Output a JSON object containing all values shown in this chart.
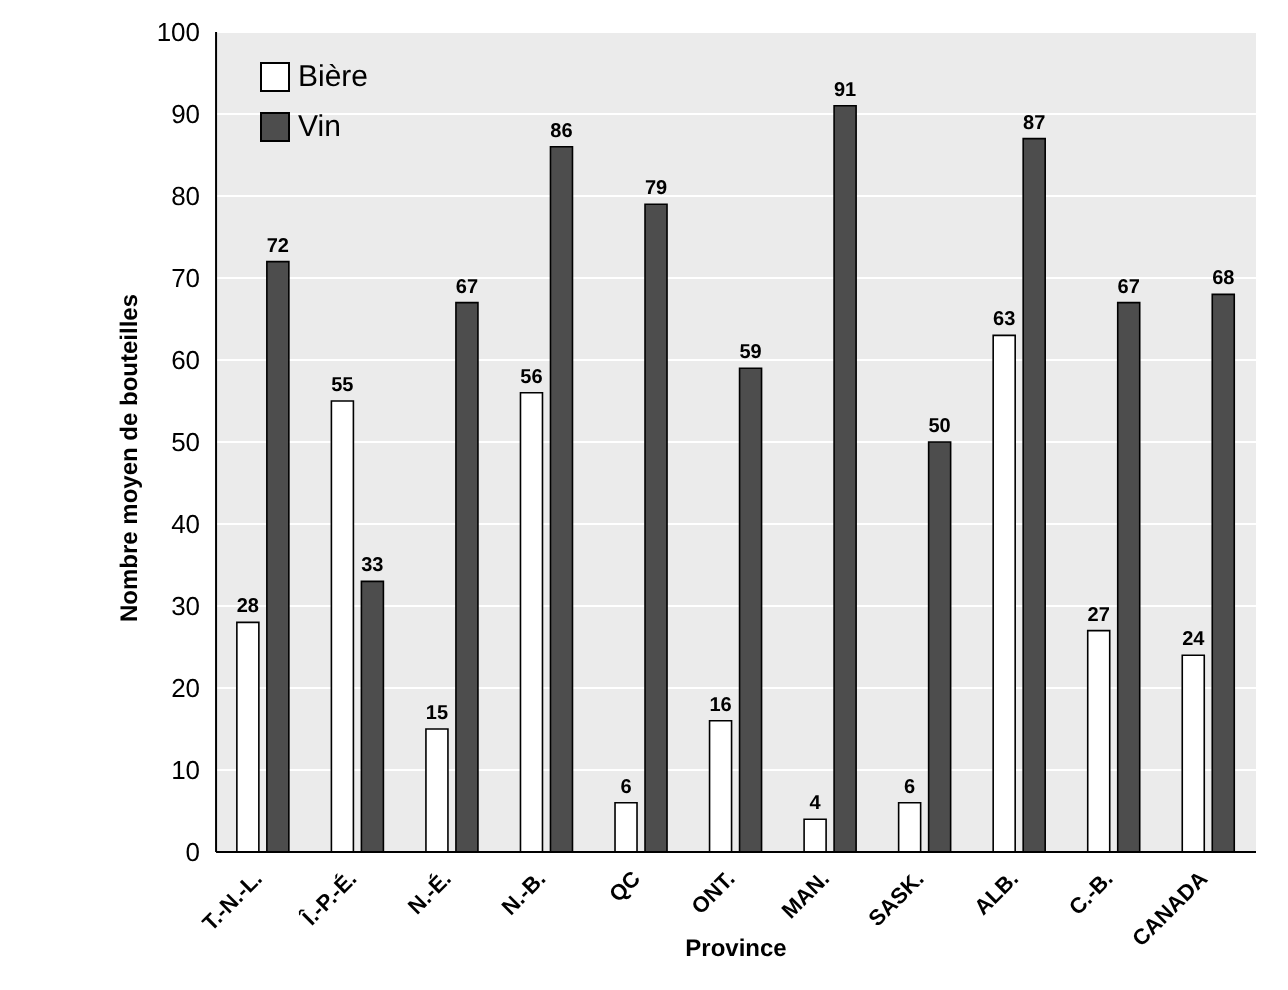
{
  "chart_data": {
    "type": "bar",
    "xlabel": "Province",
    "ylabel": "Nombre moyen de bouteilles",
    "categories": [
      "T.-N.-L.",
      "Î.-P.-É.",
      "N.-É.",
      "N.-B.",
      "QC",
      "ONT.",
      "MAN.",
      "SASK.",
      "ALB.",
      "C.-B.",
      "CANADA"
    ],
    "series": [
      {
        "name": "Bière",
        "color": "#ffffff",
        "values": [
          28,
          55,
          15,
          56,
          6,
          16,
          4,
          6,
          63,
          27,
          24
        ]
      },
      {
        "name": "Vin",
        "color": "#4d4d4d",
        "values": [
          72,
          33,
          67,
          86,
          79,
          59,
          91,
          50,
          87,
          67,
          68
        ]
      }
    ],
    "ylim": [
      0,
      100
    ],
    "yticks": [
      0,
      10,
      20,
      30,
      40,
      50,
      60,
      70,
      80,
      90,
      100
    ],
    "grid": "y",
    "legend": "top left",
    "data_labels": true
  }
}
